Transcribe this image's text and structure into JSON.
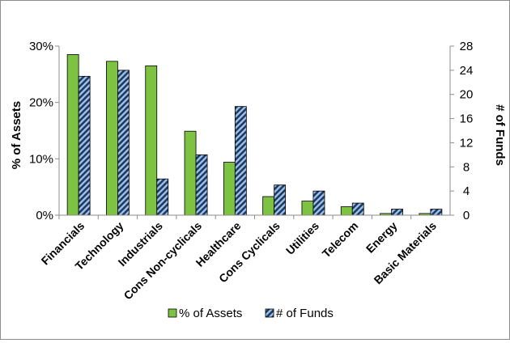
{
  "chart_data": {
    "type": "bar",
    "title": "",
    "categories": [
      "Financials",
      "Technology",
      "Industrials",
      "Cons Non-cyclicals",
      "Healthcare",
      "Cons Cyclicals",
      "Utilities",
      "Telecom",
      "Energy",
      "Basic Materials"
    ],
    "series": [
      {
        "name": "% of Assets",
        "axis": "left",
        "color": "#7dc242",
        "values": [
          28.5,
          27.3,
          26.5,
          14.9,
          9.4,
          3.3,
          2.5,
          1.5,
          0.3,
          0.3
        ]
      },
      {
        "name": "# of Funds",
        "axis": "right",
        "color": "#1f3864",
        "hatch_color": "#9dc3e6",
        "values": [
          23,
          24,
          6,
          10,
          18,
          5,
          4,
          2,
          1,
          1
        ]
      }
    ],
    "y_left": {
      "label": "% of Assets",
      "ylim": [
        0,
        30
      ],
      "ticks": [
        0,
        10,
        20,
        30
      ],
      "tick_labels": [
        "0%",
        "10%",
        "20%",
        "30%"
      ]
    },
    "y_right": {
      "label": "# of Funds",
      "ylim": [
        0,
        28
      ],
      "ticks": [
        0,
        4,
        8,
        12,
        16,
        20,
        24,
        28
      ],
      "tick_labels": [
        "0",
        "4",
        "8",
        "12",
        "16",
        "20",
        "24",
        "28"
      ]
    },
    "xlabel": "",
    "grid": false,
    "legend": "bottom"
  }
}
